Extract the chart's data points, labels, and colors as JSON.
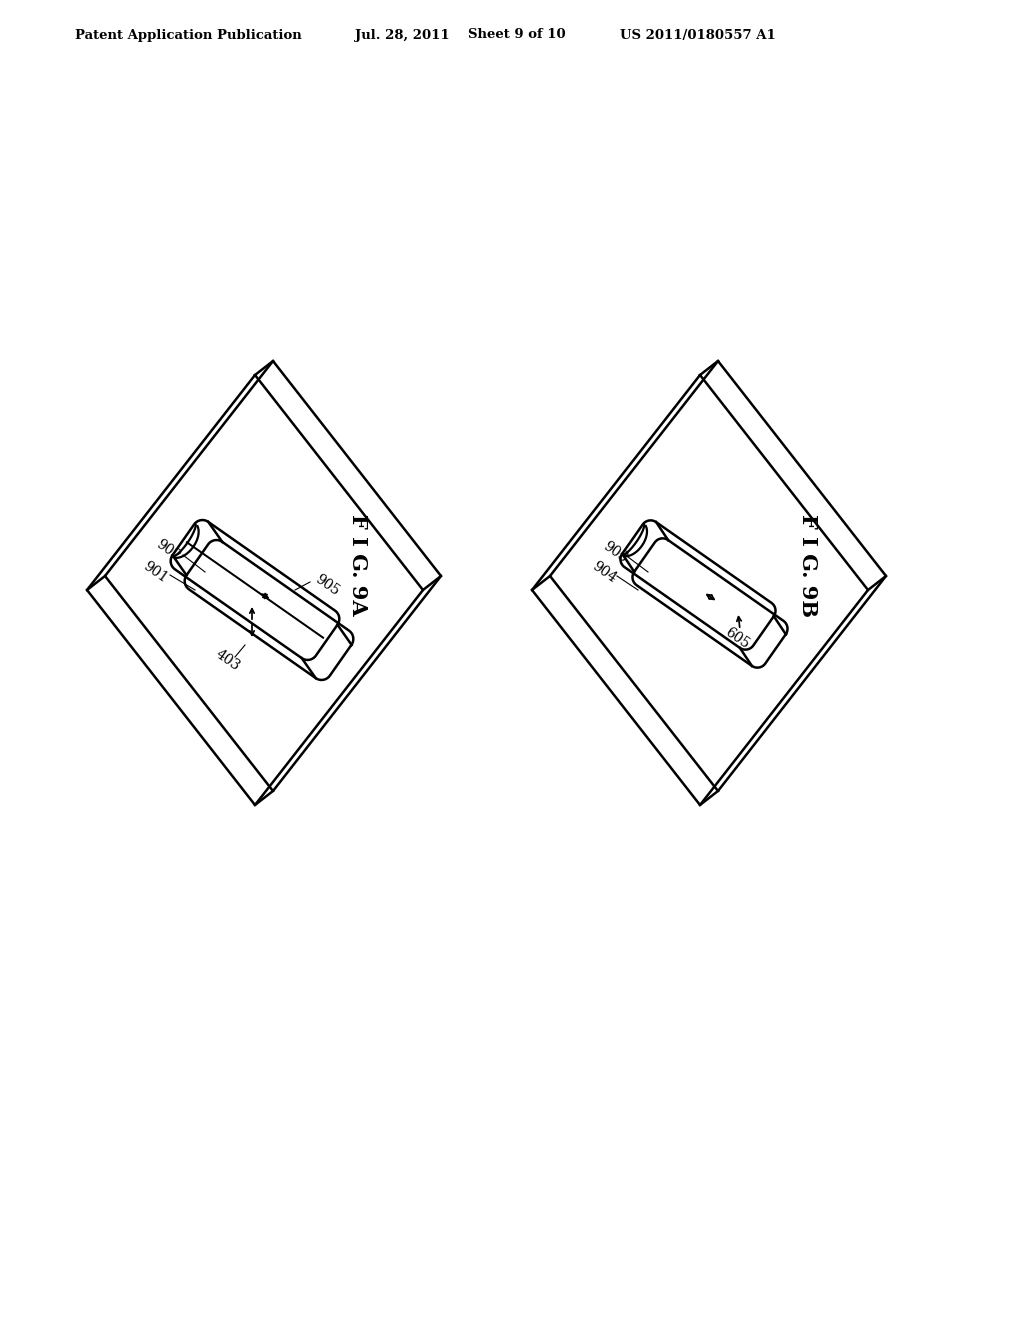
{
  "background_color": "#ffffff",
  "header_text": "Patent Application Publication",
  "header_date": "Jul. 28, 2011",
  "header_sheet": "Sheet 9 of 10",
  "header_patent": "US 2011/0180557 A1",
  "fig_9a_label": "F I G. 9A",
  "fig_9b_label": "F I G. 9B",
  "line_color": "#000000",
  "line_width": 1.8
}
